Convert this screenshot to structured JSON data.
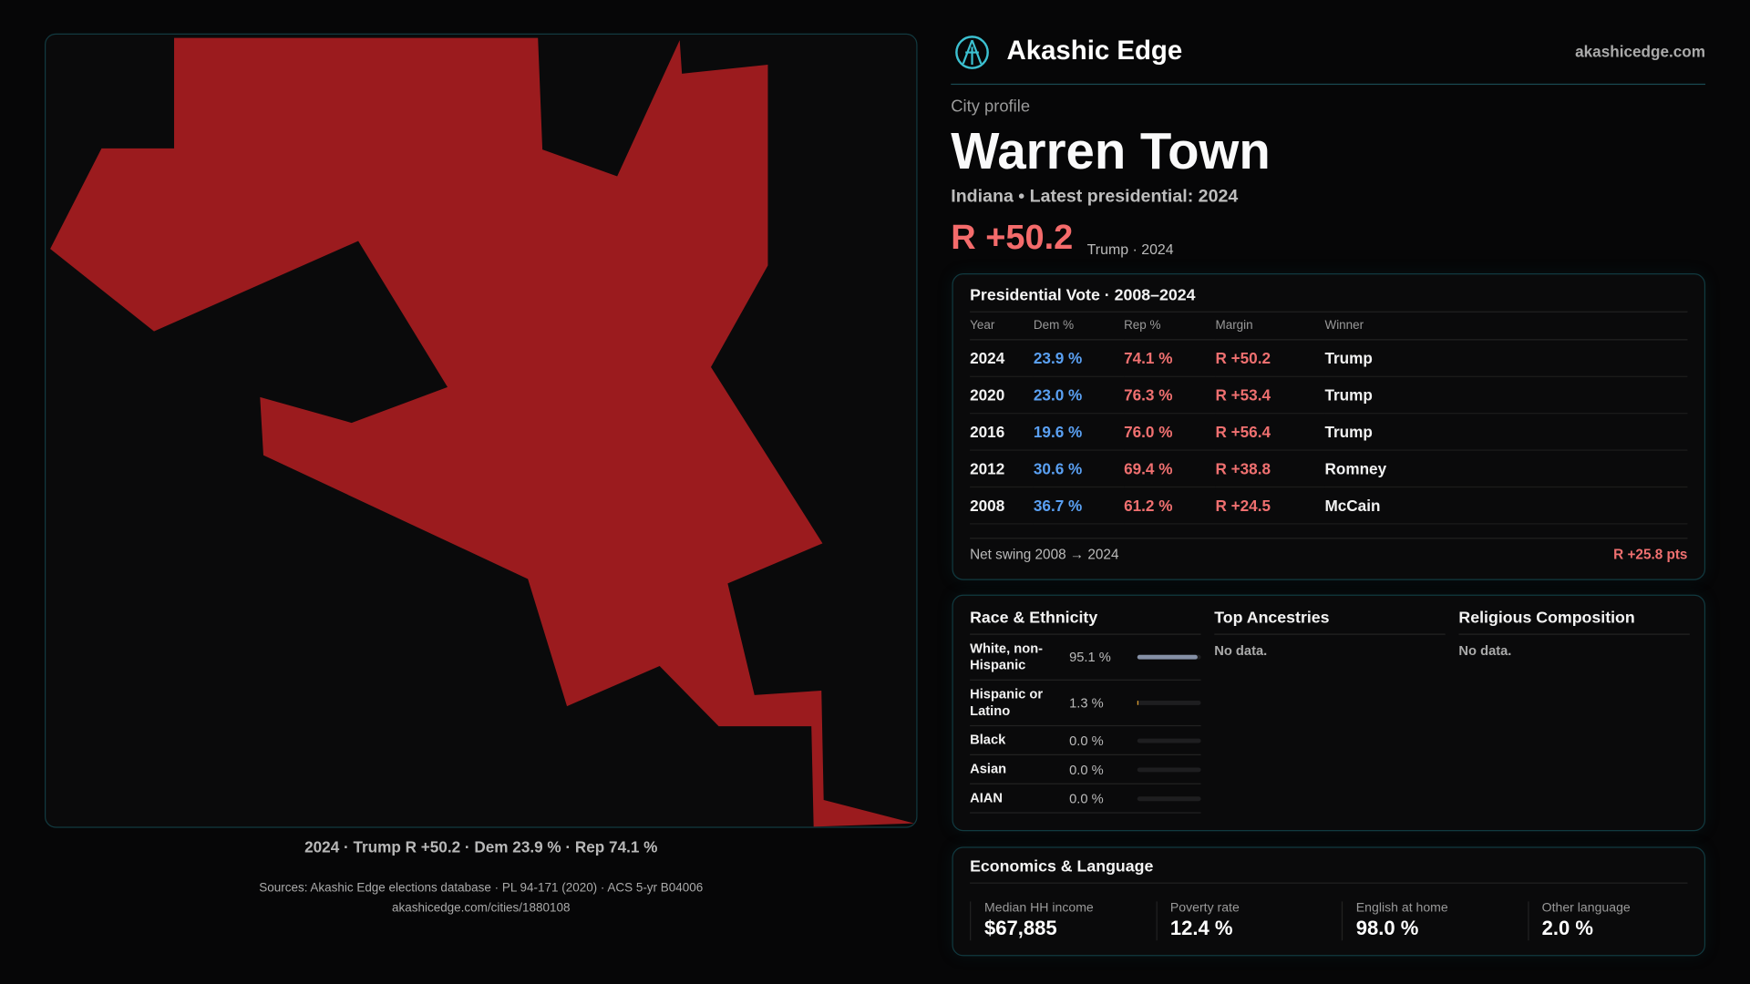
{
  "brand": {
    "name": "Akashic Edge",
    "url": "akashicedge.com",
    "logo_icon": "akashic-logo-icon"
  },
  "profile": {
    "kicker": "City profile",
    "title": "Warren Town",
    "subtitle": "Indiana • Latest presidential: 2024",
    "margin": "R +50.2",
    "margin_label": "Trump · 2024",
    "rep_color": "#f46b6b",
    "dem_color": "#5aa0f2",
    "map_fill": "#9b1b1e"
  },
  "map": {
    "caption": "2024 · Trump R +50.2 · Dem 23.9 % · Rep 74.1 %"
  },
  "vote": {
    "title": "Presidential Vote · 2008–2024",
    "headers": [
      "Year",
      "Dem %",
      "Rep %",
      "Margin",
      "Winner"
    ],
    "rows": [
      [
        "2024",
        "23.9 %",
        "74.1 %",
        "R +50.2",
        "Trump"
      ],
      [
        "2020",
        "23.0 %",
        "76.3 %",
        "R +53.4",
        "Trump"
      ],
      [
        "2016",
        "19.6 %",
        "76.0 %",
        "R +56.4",
        "Trump"
      ],
      [
        "2012",
        "30.6 %",
        "69.4 %",
        "R +38.8",
        "Romney"
      ],
      [
        "2008",
        "36.7 %",
        "61.2 %",
        "R +24.5",
        "McCain"
      ]
    ],
    "swing_label": "Net swing 2008 → 2024",
    "swing_value": "R +25.8 pts"
  },
  "race": {
    "title": "Race & Ethnicity",
    "rows": [
      {
        "label": "White, non-Hispanic",
        "pct": "95.1 %",
        "value": 95.1,
        "color": "#8590a6"
      },
      {
        "label": "Hispanic or Latino",
        "pct": "1.3 %",
        "value": 1.3,
        "color": "#e0a030"
      },
      {
        "label": "Black",
        "pct": "0.0 %",
        "value": 0,
        "color": "#888"
      },
      {
        "label": "Asian",
        "pct": "0.0 %",
        "value": 0,
        "color": "#888"
      },
      {
        "label": "AIAN",
        "pct": "0.0 %",
        "value": 0,
        "color": "#888"
      }
    ]
  },
  "ancestries": {
    "title": "Top Ancestries",
    "empty": "No data."
  },
  "religion": {
    "title": "Religious Composition",
    "empty": "No data."
  },
  "econ": {
    "title": "Economics & Language",
    "stats": [
      {
        "k": "Median HH income",
        "v": "$67,885"
      },
      {
        "k": "Poverty rate",
        "v": "12.4 %"
      },
      {
        "k": "English at home",
        "v": "98.0 %"
      },
      {
        "k": "Other language",
        "v": "2.0 %"
      }
    ]
  },
  "footer": {
    "sources": "Sources: Akashic Edge elections database · PL 94-171 (2020) · ACS 5-yr B04006",
    "link": "akashicedge.com/cities/1880108"
  }
}
